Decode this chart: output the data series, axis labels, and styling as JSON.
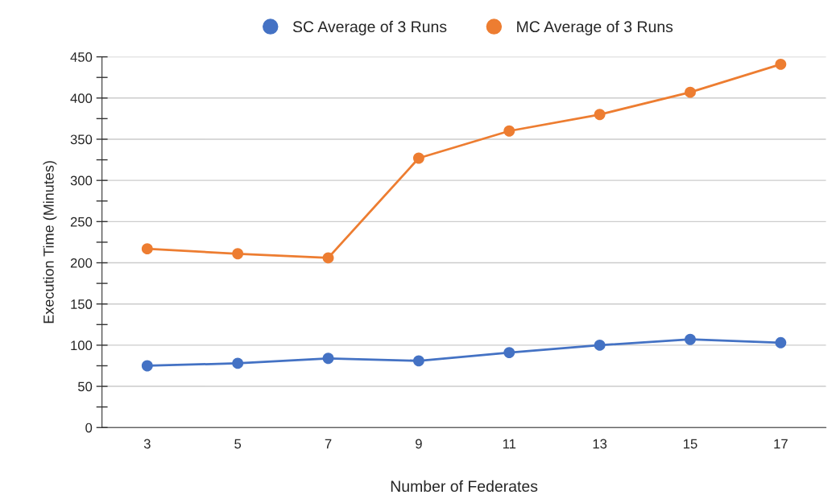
{
  "chart_data": {
    "type": "line",
    "xlabel": "Number of Federates",
    "ylabel": "Execution Time (Minutes)",
    "categories": [
      "3",
      "5",
      "7",
      "9",
      "11",
      "13",
      "15",
      "17"
    ],
    "series": [
      {
        "name": "SC Average of 3 Runs",
        "color": "#4472c4",
        "values": [
          75,
          78,
          84,
          81,
          91,
          100,
          107,
          103
        ]
      },
      {
        "name": "MC Average of 3 Runs",
        "color": "#ed7d31",
        "values": [
          217,
          211,
          206,
          327,
          360,
          380,
          407,
          441
        ]
      }
    ],
    "ylim": [
      0,
      450
    ],
    "yticks": [
      0,
      {
        "value": 25,
        "label": null
      },
      50,
      {
        "value": 75,
        "label": null
      },
      100,
      {
        "value": 125,
        "label": null
      },
      150,
      {
        "value": 175,
        "label": null
      },
      200,
      {
        "value": 225,
        "label": null
      },
      250,
      {
        "value": 275,
        "label": null
      },
      300,
      {
        "value": 325,
        "label": null
      },
      350,
      {
        "value": 375,
        "label": null
      },
      400,
      {
        "value": 425,
        "label": null
      },
      450
    ],
    "grid": "y",
    "legend": "top",
    "marker": "circle",
    "line_style": "solid"
  }
}
